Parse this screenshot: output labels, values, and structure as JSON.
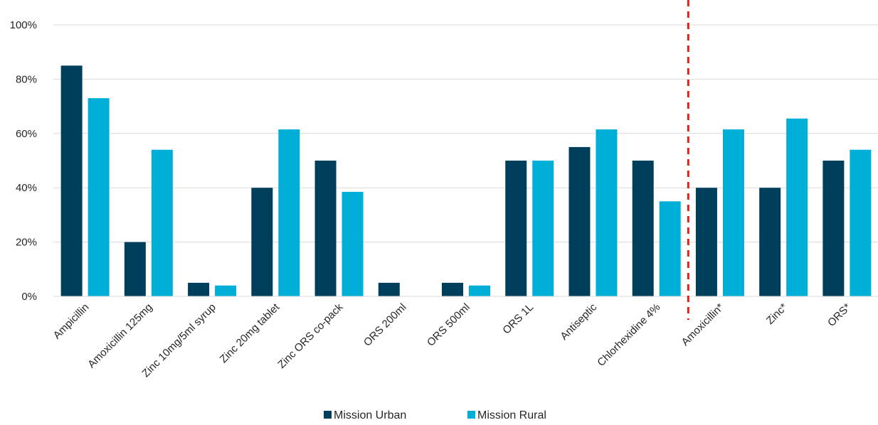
{
  "chart_data": {
    "type": "bar",
    "title": "",
    "xlabel": "",
    "ylabel": "",
    "categories": [
      "Ampicillin",
      "Amoxicillin 125mg",
      "Zinc 10mg/5ml syrup",
      "Zinc 20mg tablet",
      "Zinc ORS co-pack",
      "ORS 200ml",
      "ORS 500ml",
      "ORS 1L",
      "Antiseptic",
      "Chlorhexidine 4%",
      "Amoxicillin*",
      "Zinc*",
      "ORS*"
    ],
    "series": [
      {
        "name": "Mission Urban",
        "color": "#003f5c",
        "values": [
          85,
          20,
          5,
          40,
          50,
          5,
          5,
          50,
          55,
          50,
          40,
          40,
          50
        ]
      },
      {
        "name": "Mission Rural",
        "color": "#00afd7",
        "values": [
          73,
          54,
          4,
          61.5,
          38.5,
          0,
          4,
          50,
          61.5,
          35,
          61.5,
          65.5,
          54
        ]
      }
    ],
    "ylim": [
      0,
      100
    ],
    "yticks": [
      0,
      20,
      40,
      60,
      80,
      100
    ],
    "ytick_labels": [
      "0%",
      "20%",
      "40%",
      "60%",
      "80%",
      "100%"
    ],
    "grid": true,
    "legend_position": "bottom",
    "divider": {
      "after_category": "Chlorhexidine 4%",
      "style": "dashed",
      "color": "#e0201b"
    }
  }
}
